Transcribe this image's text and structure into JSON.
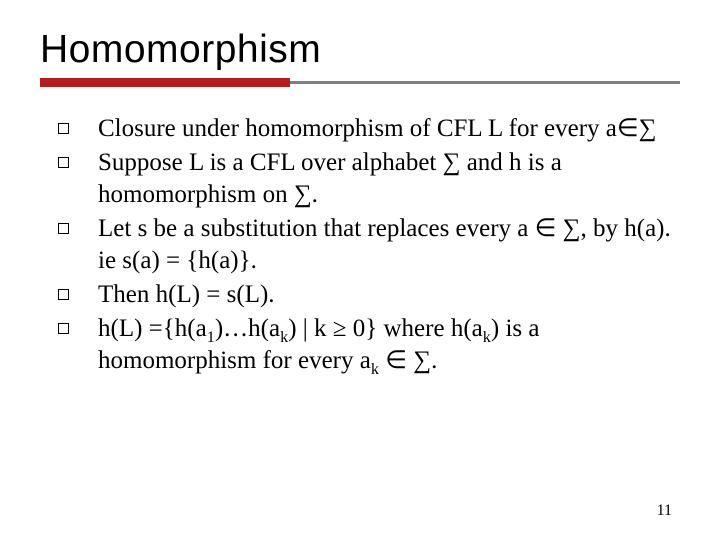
{
  "slide": {
    "title": "Homomorphism",
    "rule": {
      "red_color": "#b01e1e",
      "gray_color": "#808080",
      "red_width_pct": 39
    },
    "bullets": [
      {
        "html": "Closure under homomorphism of CFL L for every a∈∑"
      },
      {
        "html": "Suppose L is a CFL over alphabet ∑ and h is a homomorphism on ∑."
      },
      {
        "html": "Let s be a substitution that replaces every a ∈ ∑, by h(a). ie s(a) = {h(a)}."
      },
      {
        "html": "Then h(L) = s(L)."
      },
      {
        "html": "h(L) ={h(a<span class=\"sub\">1</span>)…h(a<span class=\"sub\">k</span>) | k ≥ 0}  where h(a<span class=\"sub\">k</span>) is a homomorphism for every a<span class=\"sub\">k</span> ∈ ∑."
      }
    ],
    "page_number": "11",
    "typography": {
      "title_font": "Verdana",
      "title_size_pt": 30,
      "body_font": "Times New Roman",
      "body_size_pt": 19,
      "text_color": "#000000",
      "background_color": "#ffffff"
    }
  }
}
